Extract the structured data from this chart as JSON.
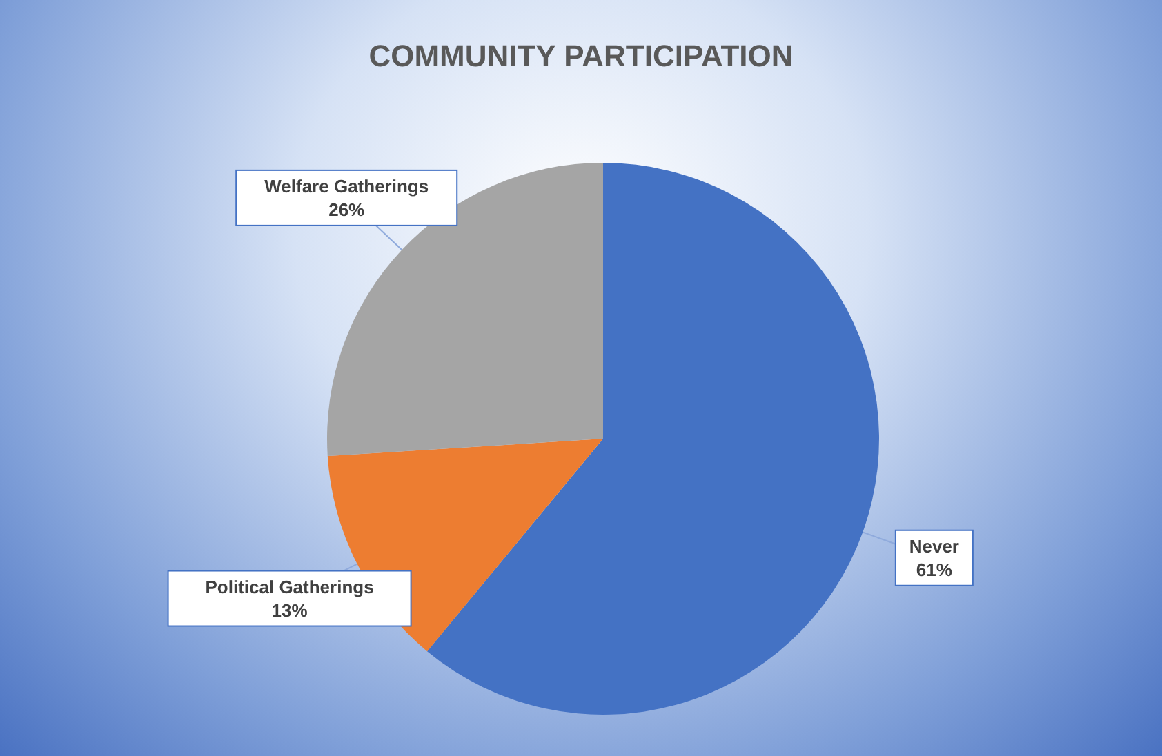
{
  "chart_data": {
    "type": "pie",
    "title": "COMMUNITY PARTICIPATION",
    "categories": [
      "Never",
      "Political Gatherings",
      "Welfare Gatherings"
    ],
    "values": [
      61,
      13,
      26
    ],
    "value_labels": [
      "61%",
      "13%",
      "26%"
    ],
    "colors": [
      "#4472c4",
      "#ed7d31",
      "#a5a5a5"
    ],
    "legend": false
  }
}
